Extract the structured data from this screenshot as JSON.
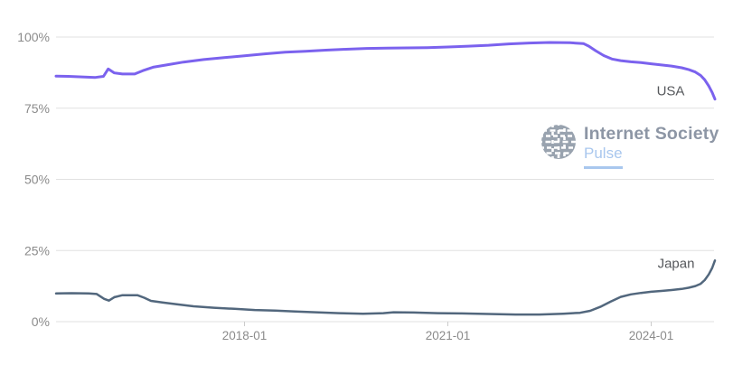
{
  "chart_data": {
    "type": "line",
    "title": "",
    "grid": true,
    "legend_position": "end-of-line-labels",
    "x_axis": {
      "range": [
        2015.22,
        2024.94
      ],
      "ticks": [
        {
          "value": 2018.0,
          "label": "2018-01"
        },
        {
          "value": 2021.0,
          "label": "2021-01"
        },
        {
          "value": 2024.0,
          "label": "2024-01"
        }
      ]
    },
    "y_axis": {
      "range": [
        0,
        100
      ],
      "unit": "%",
      "ticks": [
        {
          "value": 0,
          "label": "0%"
        },
        {
          "value": 25,
          "label": "25%"
        },
        {
          "value": 50,
          "label": "50%"
        },
        {
          "value": 75,
          "label": "75%"
        },
        {
          "value": 100,
          "label": "100%"
        }
      ]
    },
    "series": [
      {
        "name": "USA",
        "color": "#7b62ee",
        "stroke_width": 3,
        "label_pos": {
          "x": 742,
          "y": 101
        },
        "points": [
          [
            2015.22,
            86.3
          ],
          [
            2015.4,
            86.2
          ],
          [
            2015.6,
            86.0
          ],
          [
            2015.8,
            85.8
          ],
          [
            2015.92,
            86.2
          ],
          [
            2015.99,
            88.8
          ],
          [
            2016.08,
            87.4
          ],
          [
            2016.2,
            87.0
          ],
          [
            2016.38,
            87.0
          ],
          [
            2016.5,
            88.2
          ],
          [
            2016.65,
            89.4
          ],
          [
            2016.85,
            90.2
          ],
          [
            2017.1,
            91.2
          ],
          [
            2017.4,
            92.1
          ],
          [
            2017.7,
            92.8
          ],
          [
            2018.0,
            93.4
          ],
          [
            2018.3,
            94.1
          ],
          [
            2018.6,
            94.7
          ],
          [
            2018.9,
            95.0
          ],
          [
            2019.2,
            95.4
          ],
          [
            2019.5,
            95.7
          ],
          [
            2019.8,
            96.0
          ],
          [
            2020.1,
            96.1
          ],
          [
            2020.4,
            96.2
          ],
          [
            2020.7,
            96.3
          ],
          [
            2021.0,
            96.5
          ],
          [
            2021.3,
            96.8
          ],
          [
            2021.6,
            97.1
          ],
          [
            2021.9,
            97.6
          ],
          [
            2022.2,
            97.9
          ],
          [
            2022.5,
            98.1
          ],
          [
            2022.8,
            98.0
          ],
          [
            2023.0,
            97.7
          ],
          [
            2023.08,
            96.8
          ],
          [
            2023.18,
            95.2
          ],
          [
            2023.3,
            93.5
          ],
          [
            2023.42,
            92.3
          ],
          [
            2023.55,
            91.7
          ],
          [
            2023.7,
            91.3
          ],
          [
            2023.85,
            91.0
          ],
          [
            2024.0,
            90.6
          ],
          [
            2024.15,
            90.2
          ],
          [
            2024.3,
            89.8
          ],
          [
            2024.45,
            89.2
          ],
          [
            2024.55,
            88.6
          ],
          [
            2024.65,
            87.7
          ],
          [
            2024.73,
            86.5
          ],
          [
            2024.79,
            85.0
          ],
          [
            2024.85,
            82.8
          ],
          [
            2024.9,
            80.5
          ],
          [
            2024.94,
            78.2
          ]
        ]
      },
      {
        "name": "Japan",
        "color": "#52677d",
        "stroke_width": 2.5,
        "label_pos": {
          "x": 748,
          "y": 292
        },
        "points": [
          [
            2015.22,
            9.9
          ],
          [
            2015.45,
            10.0
          ],
          [
            2015.7,
            9.9
          ],
          [
            2015.82,
            9.7
          ],
          [
            2015.93,
            8.0
          ],
          [
            2016.0,
            7.4
          ],
          [
            2016.08,
            8.6
          ],
          [
            2016.2,
            9.3
          ],
          [
            2016.42,
            9.3
          ],
          [
            2016.52,
            8.4
          ],
          [
            2016.62,
            7.3
          ],
          [
            2016.8,
            6.7
          ],
          [
            2017.0,
            6.1
          ],
          [
            2017.25,
            5.4
          ],
          [
            2017.55,
            4.9
          ],
          [
            2017.85,
            4.5
          ],
          [
            2018.15,
            4.1
          ],
          [
            2018.45,
            3.9
          ],
          [
            2018.75,
            3.6
          ],
          [
            2019.05,
            3.3
          ],
          [
            2019.4,
            3.0
          ],
          [
            2019.75,
            2.8
          ],
          [
            2020.05,
            3.0
          ],
          [
            2020.2,
            3.3
          ],
          [
            2020.5,
            3.2
          ],
          [
            2020.85,
            3.0
          ],
          [
            2021.2,
            2.9
          ],
          [
            2021.6,
            2.7
          ],
          [
            2022.0,
            2.5
          ],
          [
            2022.35,
            2.5
          ],
          [
            2022.7,
            2.8
          ],
          [
            2022.95,
            3.1
          ],
          [
            2023.1,
            3.8
          ],
          [
            2023.25,
            5.2
          ],
          [
            2023.4,
            7.0
          ],
          [
            2023.55,
            8.7
          ],
          [
            2023.7,
            9.6
          ],
          [
            2023.85,
            10.1
          ],
          [
            2024.0,
            10.5
          ],
          [
            2024.15,
            10.8
          ],
          [
            2024.3,
            11.1
          ],
          [
            2024.45,
            11.5
          ],
          [
            2024.55,
            11.9
          ],
          [
            2024.65,
            12.5
          ],
          [
            2024.73,
            13.3
          ],
          [
            2024.79,
            14.6
          ],
          [
            2024.85,
            16.6
          ],
          [
            2024.9,
            18.9
          ],
          [
            2024.94,
            21.5
          ]
        ]
      }
    ]
  },
  "watermark": {
    "title": "Internet Society",
    "subtitle": "Pulse"
  },
  "style": {
    "grid_color": "#e1e1e1",
    "tick_mark_color": "#cccccc",
    "tick_text_color": "#8b8b8b",
    "series_label_color": "#56585c",
    "logo_icon_color": "#99a3af",
    "logo_title_color": "#8d96a5",
    "logo_accent_color": "#a9c7ee",
    "background": "#ffffff"
  }
}
